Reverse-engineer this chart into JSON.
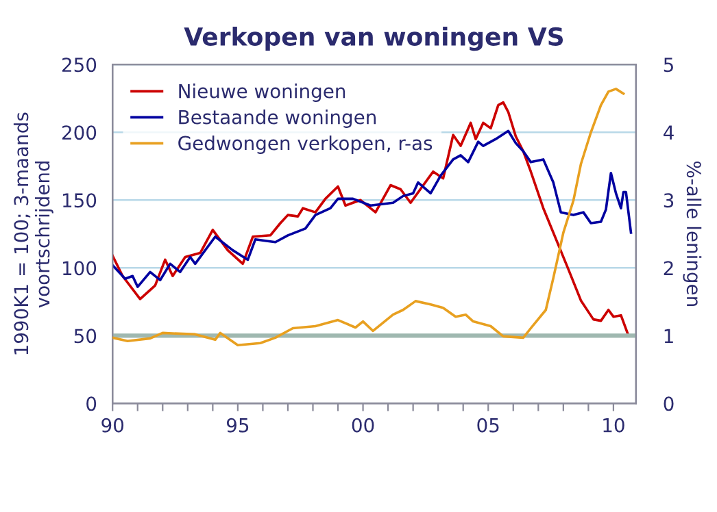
{
  "chart_data": {
    "type": "line",
    "title": "Verkopen van woningen VS",
    "ylabel": "1990K1 = 100; 3-maands\nvoortschrijdend",
    "y2label": "%-alle leningen",
    "xlim": [
      1990,
      2010.9
    ],
    "xticks": [
      {
        "value": 1990,
        "label": "90"
      },
      {
        "value": 1991,
        "label": null
      },
      {
        "value": 1992,
        "label": null
      },
      {
        "value": 1993,
        "label": null
      },
      {
        "value": 1994,
        "label": null
      },
      {
        "value": 1995,
        "label": "95"
      },
      {
        "value": 1996,
        "label": null
      },
      {
        "value": 1997,
        "label": null
      },
      {
        "value": 1998,
        "label": null
      },
      {
        "value": 1999,
        "label": null
      },
      {
        "value": 2000,
        "label": "00"
      },
      {
        "value": 2001,
        "label": null
      },
      {
        "value": 2002,
        "label": null
      },
      {
        "value": 2003,
        "label": null
      },
      {
        "value": 2004,
        "label": null
      },
      {
        "value": 2005,
        "label": "05"
      },
      {
        "value": 2006,
        "label": null
      },
      {
        "value": 2007,
        "label": null
      },
      {
        "value": 2008,
        "label": null
      },
      {
        "value": 2009,
        "label": null
      },
      {
        "value": 2010,
        "label": "10"
      }
    ],
    "ylim": [
      0,
      250
    ],
    "yticks": [
      0,
      50,
      100,
      150,
      200,
      250
    ],
    "y2lim": [
      0,
      5
    ],
    "y2ticks": [
      0,
      1,
      2,
      3,
      4,
      5
    ],
    "grid": "y",
    "legend": "top left",
    "line_style": "solid",
    "marker": "none",
    "ref_lines": [
      {
        "axis": "y2",
        "value": 1,
        "label": null,
        "color": "#9fb8b0"
      }
    ],
    "series": [
      {
        "name": "Nieuwe woningen",
        "color": "#cc0000",
        "x": [
          1990.0,
          1990.4,
          1991.1,
          1991.7,
          1992.1,
          1992.4,
          1992.9,
          1993.5,
          1994.0,
          1994.6,
          1995.2,
          1995.6,
          1996.3,
          1996.7,
          1997.0,
          1997.4,
          1997.6,
          1998.1,
          1998.5,
          1999.0,
          1999.3,
          1999.9,
          2000.5,
          2001.1,
          2001.5,
          2001.9,
          2002.8,
          2003.2,
          2003.6,
          2003.9,
          2004.3,
          2004.5,
          2004.8,
          2005.1,
          2005.4,
          2005.6,
          2005.8,
          2006.1,
          2006.4,
          2006.7,
          2007.2,
          2007.6,
          2008.2,
          2008.7,
          2009.2,
          2009.5,
          2009.8,
          2010.0,
          2010.3,
          2010.6
        ],
        "values": [
          109,
          94,
          77,
          87,
          106,
          94,
          108,
          111,
          128,
          113,
          103,
          123,
          124,
          133,
          139,
          138,
          144,
          141,
          151,
          160,
          146,
          150,
          141,
          161,
          158,
          148,
          171,
          166,
          198,
          190,
          207,
          195,
          207,
          203,
          220,
          222,
          215,
          197,
          186,
          171,
          144,
          126,
          99,
          76,
          62,
          61,
          69,
          64,
          65,
          50
        ]
      },
      {
        "name": "Bestaande woningen",
        "color": "#0000a0",
        "x": [
          1990.0,
          1990.5,
          1990.8,
          1991.0,
          1991.5,
          1991.9,
          1992.3,
          1992.7,
          1993.1,
          1993.3,
          1994.1,
          1994.8,
          1995.4,
          1995.7,
          1996.5,
          1997.0,
          1997.7,
          1998.1,
          1998.7,
          1999.0,
          1999.6,
          2000.3,
          2001.2,
          2001.6,
          2002.0,
          2002.2,
          2002.7,
          2003.1,
          2003.6,
          2003.9,
          2004.2,
          2004.6,
          2004.8,
          2005.3,
          2005.8,
          2006.1,
          2006.4,
          2006.7,
          2007.2,
          2007.6,
          2007.9,
          2008.4,
          2008.8,
          2009.1,
          2009.5,
          2009.7,
          2009.9,
          2010.1,
          2010.3,
          2010.4,
          2010.5,
          2010.7
        ],
        "values": [
          102,
          92,
          94,
          86,
          97,
          91,
          103,
          97,
          108,
          103,
          123,
          113,
          106,
          121,
          119,
          124,
          129,
          139,
          144,
          151,
          151,
          146,
          148,
          153,
          155,
          163,
          155,
          168,
          180,
          183,
          178,
          193,
          190,
          195,
          201,
          192,
          186,
          178,
          180,
          163,
          141,
          139,
          141,
          133,
          134,
          143,
          170,
          155,
          144,
          156,
          156,
          126
        ]
      },
      {
        "name": "Gedwongen verkopen, r-as",
        "color": "#e8a020",
        "axis": "y2",
        "x": [
          1990.0,
          1990.6,
          1991.5,
          1992.0,
          1993.3,
          1994.1,
          1994.3,
          1995.0,
          1995.9,
          1996.5,
          1997.2,
          1998.1,
          1999.0,
          1999.7,
          2000.0,
          2000.4,
          2001.2,
          2001.6,
          2002.1,
          2002.7,
          2003.2,
          2003.7,
          2004.1,
          2004.4,
          2005.1,
          2005.6,
          2006.4,
          2006.7,
          2007.3,
          2007.6,
          2008.0,
          2008.4,
          2008.7,
          2009.1,
          2009.5,
          2009.8,
          2010.1,
          2010.4
        ],
        "values": [
          0.97,
          0.92,
          0.96,
          1.04,
          1.02,
          0.94,
          1.04,
          0.86,
          0.89,
          0.97,
          1.11,
          1.14,
          1.23,
          1.12,
          1.21,
          1.07,
          1.31,
          1.38,
          1.51,
          1.46,
          1.41,
          1.28,
          1.31,
          1.21,
          1.14,
          0.99,
          0.97,
          1.11,
          1.38,
          1.85,
          2.52,
          2.99,
          3.53,
          4.0,
          4.4,
          4.6,
          4.64,
          4.57
        ]
      }
    ]
  }
}
